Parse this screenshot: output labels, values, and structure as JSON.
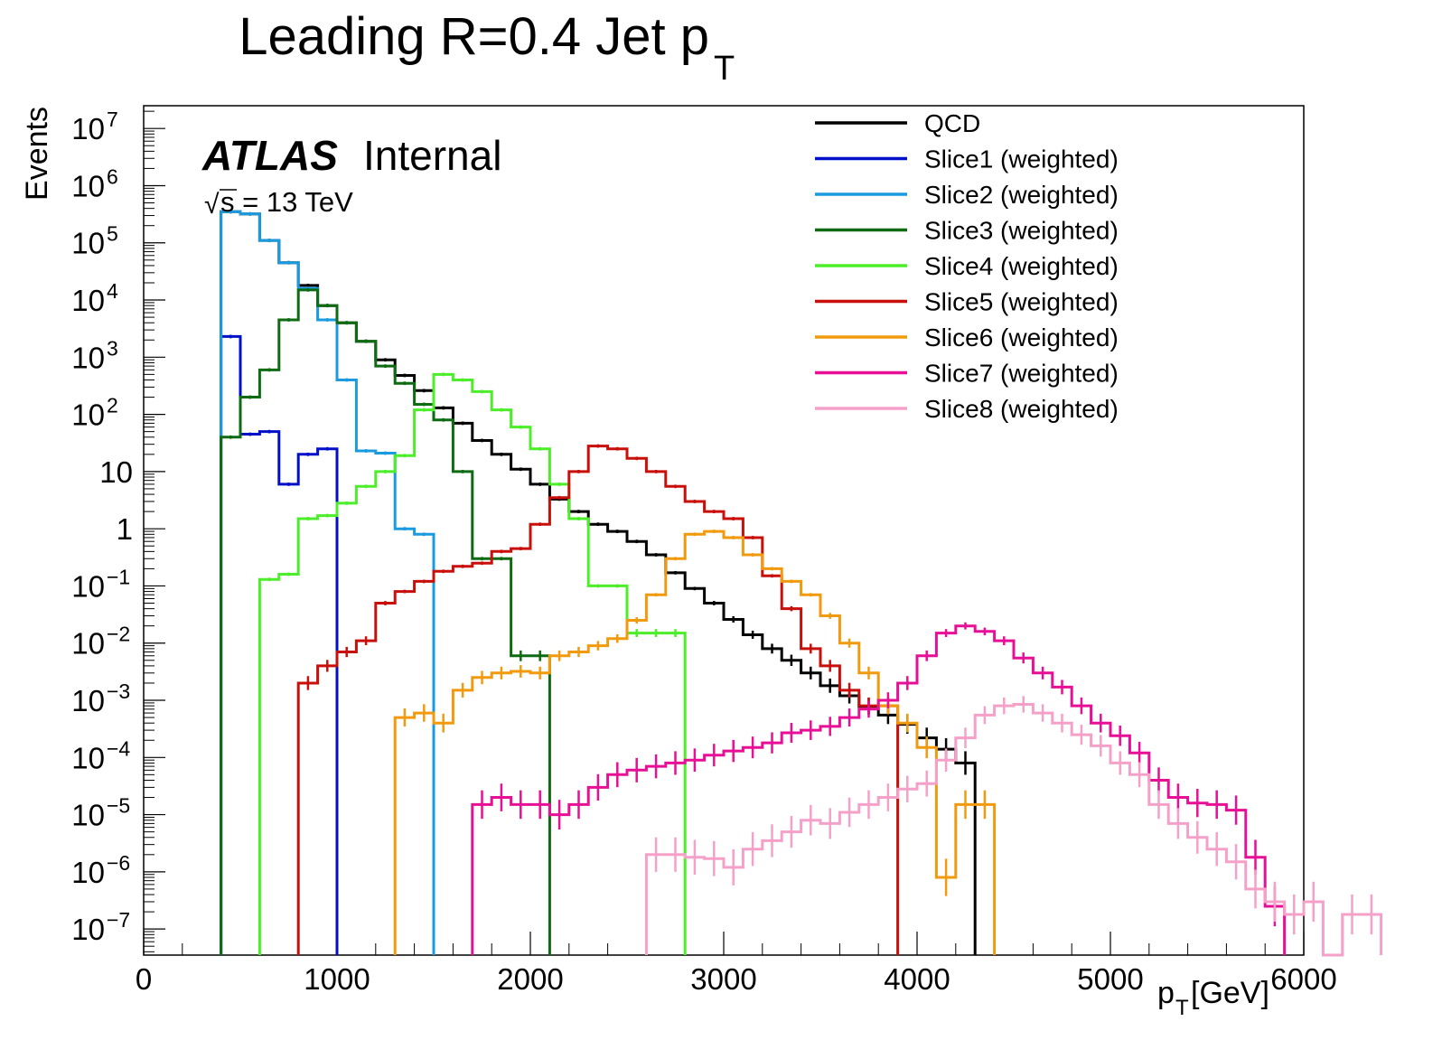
{
  "chart_data": {
    "type": "histogram",
    "title": "Leading R=0.4 Jet p",
    "title_subscript": "T",
    "xlabel": "p",
    "xlabel_subscript": "T",
    "xlabel_unit": " [GeV]",
    "ylabel": "Events",
    "xlim": [
      0,
      6000
    ],
    "ylim": [
      3.5e-08,
      25000000.0
    ],
    "yscale": "log",
    "x_ticks": [
      "0",
      "1000",
      "2000",
      "3000",
      "4000",
      "5000",
      "6000"
    ],
    "x_tick_values": [
      0,
      1000,
      2000,
      3000,
      4000,
      5000,
      6000
    ],
    "y_ticks": [
      {
        "value": 10000000.0,
        "base": "10",
        "exp": "7"
      },
      {
        "value": 1000000.0,
        "base": "10",
        "exp": "6"
      },
      {
        "value": 100000.0,
        "base": "10",
        "exp": "5"
      },
      {
        "value": 10000.0,
        "base": "10",
        "exp": "4"
      },
      {
        "value": 1000.0,
        "base": "10",
        "exp": "3"
      },
      {
        "value": 100.0,
        "base": "10",
        "exp": "2"
      },
      {
        "value": 10,
        "base": "10",
        "exp": ""
      },
      {
        "value": 1,
        "base": "1",
        "exp": ""
      },
      {
        "value": 0.1,
        "base": "10",
        "exp": "−1"
      },
      {
        "value": 0.01,
        "base": "10",
        "exp": "−2"
      },
      {
        "value": 0.001,
        "base": "10",
        "exp": "−3"
      },
      {
        "value": 0.0001,
        "base": "10",
        "exp": "−4"
      },
      {
        "value": 1e-05,
        "base": "10",
        "exp": "−5"
      },
      {
        "value": 1e-06,
        "base": "10",
        "exp": "−6"
      },
      {
        "value": 1e-07,
        "base": "10",
        "exp": "−7"
      }
    ],
    "bin_width": 100,
    "grid": false,
    "legend_position": "top-right",
    "annotations": {
      "atlas": "ATLAS",
      "internal": "Internal",
      "energy": "s = 13 TeV",
      "sqrt": "√"
    },
    "series": [
      {
        "name": "QCD",
        "color": "#000000",
        "x_start": 400,
        "values": [
          350000.0,
          320000.0,
          110000.0,
          45000.0,
          18000.0,
          8000.0,
          4000.0,
          1900.0,
          900.0,
          480.0,
          260.0,
          130.0,
          70.0,
          35.0,
          20.0,
          11.0,
          6.0,
          3.3,
          2.0,
          1.2,
          0.9,
          0.6,
          0.35,
          0.17,
          0.09,
          0.05,
          0.026,
          0.014,
          0.008,
          0.005,
          0.003,
          0.0018,
          0.0012,
          0.00078,
          0.00055,
          0.00038,
          0.00022,
          0.00014,
          8e-05
        ]
      },
      {
        "name": "Slice1 (weighted)",
        "color": "#0010c8",
        "x_start": 400,
        "values": [
          2300,
          45,
          50,
          6,
          20,
          25
        ]
      },
      {
        "name": "Slice2 (weighted)",
        "color": "#1a9be0",
        "x_start": 400,
        "values": [
          350000.0,
          320000.0,
          110000.0,
          45000.0,
          16000.0,
          4500.0,
          400.0,
          23.0,
          21.0,
          1.0,
          0.8
        ]
      },
      {
        "name": "Slice3 (weighted)",
        "color": "#0e6b12",
        "x_start": 400,
        "values": [
          40,
          200.0,
          600.0,
          4500.0,
          15000.0,
          8000.0,
          4000.0,
          1900.0,
          700.0,
          350.0,
          150.0,
          80.0,
          10.0,
          0.3,
          0.3,
          0.006,
          0.006
        ]
      },
      {
        "name": "Slice4 (weighted)",
        "color": "#4cee2a",
        "x_start": 600,
        "values": [
          0.13,
          0.16,
          1.5,
          1.7,
          2.8,
          5.5,
          10,
          19,
          120.0,
          500.0,
          400.0,
          250.0,
          120.0,
          60.0,
          25.0,
          6.0,
          1.5,
          0.1,
          0.1,
          0.015,
          0.015,
          0.015
        ]
      },
      {
        "name": "Slice5 (weighted)",
        "color": "#c80f0a",
        "x_start": 800,
        "values": [
          0.002,
          0.004,
          0.007,
          0.011,
          0.05,
          0.08,
          0.12,
          0.18,
          0.22,
          0.25,
          0.4,
          0.45,
          1.2,
          3.5,
          10,
          28,
          25,
          17,
          10,
          5.5,
          3.0,
          2.0,
          1.5,
          0.7,
          0.15,
          0.04,
          0.008,
          0.004,
          0.0015,
          0.0008,
          0.0008
        ]
      },
      {
        "name": "Slice6 (weighted)",
        "color": "#f29a0e",
        "x_start": 1300,
        "values": [
          0.0005,
          0.0006,
          0.0004,
          0.0015,
          0.0025,
          0.003,
          0.0032,
          0.003,
          0.006,
          0.007,
          0.009,
          0.012,
          0.025,
          0.07,
          0.3,
          0.8,
          0.9,
          0.7,
          0.35,
          0.2,
          0.12,
          0.07,
          0.03,
          0.01,
          0.003,
          0.0008,
          0.0004,
          0.00015,
          8e-07,
          1.5e-05,
          1.5e-05
        ]
      },
      {
        "name": "Slice7 (weighted)",
        "color": "#e80f97",
        "x_start": 1700,
        "values": [
          1.5e-05,
          2e-05,
          1.5e-05,
          1.5e-05,
          1e-05,
          1.5e-05,
          3e-05,
          5e-05,
          6e-05,
          7e-05,
          8e-05,
          9e-05,
          0.00011,
          0.00013,
          0.00015,
          0.00018,
          0.00027,
          0.0003,
          0.00035,
          0.0005,
          0.0007,
          0.001,
          0.002,
          0.006,
          0.015,
          0.02,
          0.016,
          0.011,
          0.0055,
          0.003,
          0.0017,
          0.0008,
          0.0004,
          0.00024,
          0.00012,
          4e-05,
          2e-05,
          1.6e-05,
          1.5e-05,
          1.2e-05,
          1.8e-06,
          2.5e-07
        ]
      },
      {
        "name": "Slice8 (weighted)",
        "color": "#f5a0c8",
        "x_start": 2600,
        "values": [
          2e-06,
          2e-06,
          1.8e-06,
          1.7e-06,
          1.2e-06,
          2.5e-06,
          3.5e-06,
          5e-06,
          8e-06,
          7e-06,
          1.1e-05,
          1.5e-05,
          2e-05,
          2.8e-05,
          3.5e-05,
          9e-05,
          0.00022,
          0.00055,
          0.0008,
          0.00085,
          0.0006,
          0.0004,
          0.00025,
          0.00016,
          8e-05,
          5e-05,
          1.5e-05,
          7e-06,
          4e-06,
          2.5e-06,
          1.5e-06,
          5e-07,
          3e-07,
          1.8e-07,
          3e-07,
          1e-08,
          1.8e-07,
          1.8e-07
        ]
      }
    ]
  }
}
